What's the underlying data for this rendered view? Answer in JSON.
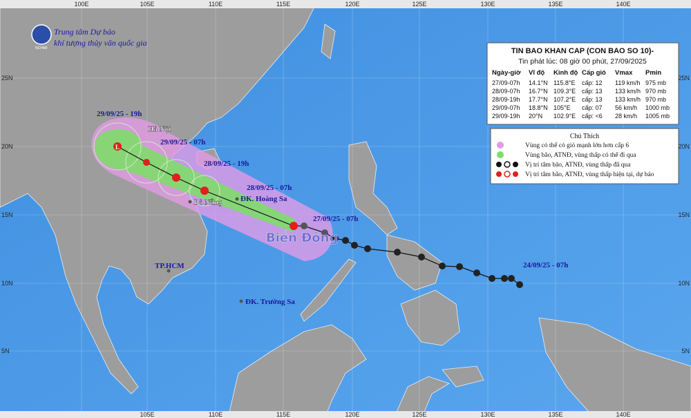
{
  "header": {
    "agency_line1": "Trung tâm Dự báo",
    "agency_line2": "khí tượng thủy văn quốc gia",
    "logo": "NCHMF"
  },
  "grid": {
    "top": [
      "100E",
      "105E",
      "110E",
      "115E",
      "120E",
      "125E",
      "130E",
      "135E",
      "140E"
    ],
    "bottom": [
      "105E",
      "110E",
      "115E",
      "120E",
      "125E",
      "130E",
      "135E",
      "140E"
    ],
    "left": [
      "25N",
      "20N",
      "15N",
      "10N",
      "5N"
    ],
    "right": [
      "25N",
      "20N",
      "15N",
      "10N",
      "5N"
    ]
  },
  "map": {
    "hanoi": "Hà Nội",
    "danang": "Đà Nẵng",
    "hoangsa": "ĐK. Hoàng Sa",
    "truongsa": "ĐK. Trường Sa",
    "hcm": "TP.HCM",
    "sea": "Biển Đông",
    "low_symbol": "L",
    "times": [
      "29/09/25 - 19h",
      "29/09/25 - 07h",
      "28/09/25 - 19h",
      "28/09/25 - 07h",
      "27/09/25 - 07h",
      "24/09/25 - 07h"
    ]
  },
  "bulletin": {
    "title": "TIN BAO KHAN CAP (CON BAO SO 10)-",
    "issued": "Tin phát lúc: 08 giờ 00 phút, 27/09/2025",
    "columns": [
      "Ngày-giờ",
      "Vĩ độ",
      "Kinh độ",
      "Cấp gió",
      "Vmax",
      "Pmin"
    ],
    "rows": [
      [
        "27/09-07h",
        "14.1°N",
        "115.8°E",
        "cấp: 12",
        "119 km/h",
        "975 mb"
      ],
      [
        "28/09-07h",
        "16.7°N",
        "109.3°E",
        "cấp: 13",
        "133 km/h",
        "970 mb"
      ],
      [
        "28/09-19h",
        "17.7°N",
        "107.2°E",
        "cấp: 13",
        "133 km/h",
        "970 mb"
      ],
      [
        "29/09-07h",
        "18.8°N",
        "105°E",
        "cấp: 07",
        "56 km/h",
        "1000 mb"
      ],
      [
        "29/09-19h",
        "20°N",
        "102.9°E",
        "cấp: <6",
        "28 km/h",
        "1005 mb"
      ]
    ]
  },
  "legend": {
    "title": "Chú Thích",
    "items": [
      "Vùng có thể có gió mạnh lớn hơn cấp 6",
      "Vùng bão, ATNĐ, vùng thấp có thể đi qua",
      "Vị trí tâm bão, ATNĐ, vùng thấp đã qua",
      "Vị trí tâm bão, ATNĐ, vùng thấp hiện tại, dự báo"
    ]
  }
}
